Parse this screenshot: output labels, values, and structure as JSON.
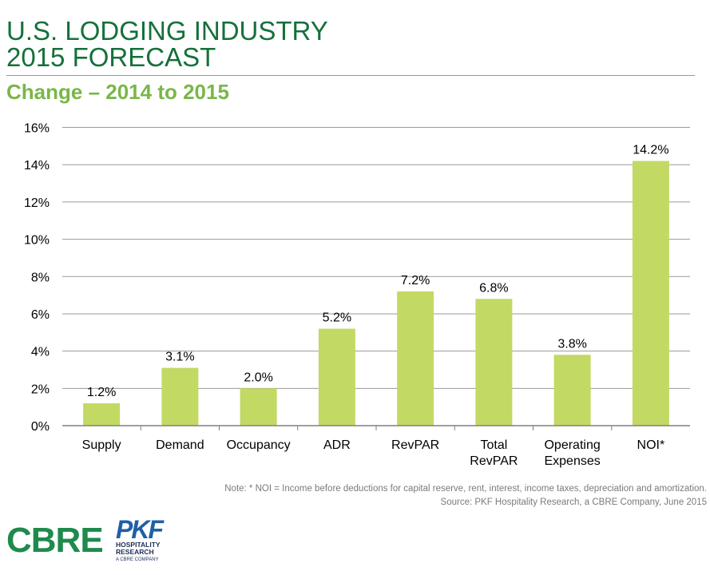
{
  "header": {
    "title_line1": "U.S. LODGING INDUSTRY",
    "title_line2": "2015 FORECAST",
    "subtitle": "Change – 2014 to 2015"
  },
  "chart_data": {
    "type": "bar",
    "categories": [
      [
        "Supply"
      ],
      [
        "Demand"
      ],
      [
        "Occupancy"
      ],
      [
        "ADR"
      ],
      [
        "RevPAR"
      ],
      [
        "Total",
        "RevPAR"
      ],
      [
        "Operating",
        "Expenses"
      ],
      [
        "NOI*"
      ]
    ],
    "values": [
      1.2,
      3.1,
      2.0,
      5.2,
      7.2,
      6.8,
      3.8,
      14.2
    ],
    "data_labels": [
      "1.2%",
      "3.1%",
      "2.0%",
      "5.2%",
      "7.2%",
      "6.8%",
      "3.8%",
      "14.2%"
    ],
    "y_ticks": [
      0,
      2,
      4,
      6,
      8,
      10,
      12,
      14,
      16
    ],
    "y_tick_labels": [
      "0%",
      "2%",
      "4%",
      "6%",
      "8%",
      "10%",
      "12%",
      "14%",
      "16%"
    ],
    "ylim": [
      0,
      16
    ],
    "grid": true,
    "colors": {
      "bar": "#c2d964",
      "grid": "#9a9a9a",
      "axis": "#808080"
    }
  },
  "footer": {
    "note": "Note: * NOI = Income before deductions for capital reserve, rent, interest, income taxes, depreciation and amortization.",
    "source": "Source: PKF Hospitality Research, a CBRE Company, June 2015"
  },
  "logos": {
    "cbre": "CBRE",
    "pkf": "PKF",
    "pkf_line1": "HOSPITALITY",
    "pkf_line2": "RESEARCH",
    "pkf_tagline": "A CBRE COMPANY"
  }
}
